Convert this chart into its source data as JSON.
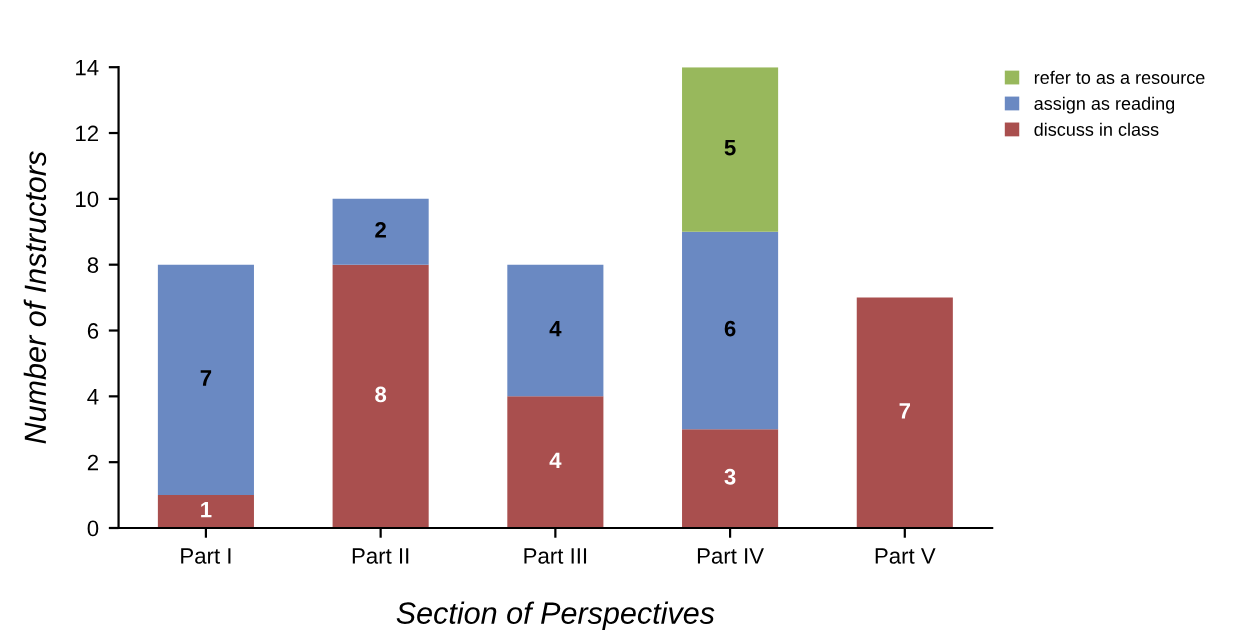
{
  "chart_data": {
    "type": "bar",
    "stacked": true,
    "xlabel": "Section of Perspectives",
    "ylabel": "Number of Instructors",
    "categories": [
      "Part I",
      "Part II",
      "Part III",
      "Part IV",
      "Part V"
    ],
    "series": [
      {
        "name": "discuss in class",
        "color": "#a94f4e",
        "values": [
          1,
          8,
          4,
          3,
          7
        ]
      },
      {
        "name": "assign as reading",
        "color": "#6a89c2",
        "values": [
          7,
          2,
          4,
          6,
          null
        ]
      },
      {
        "name": "refer to as a resource",
        "color": "#98b85c",
        "values": [
          null,
          null,
          null,
          5,
          null
        ]
      }
    ],
    "ylim": [
      0,
      14
    ],
    "yticks": [
      0,
      2,
      4,
      6,
      8,
      10,
      12,
      14
    ],
    "data_labels": true,
    "legend": "top right",
    "grid": false
  }
}
